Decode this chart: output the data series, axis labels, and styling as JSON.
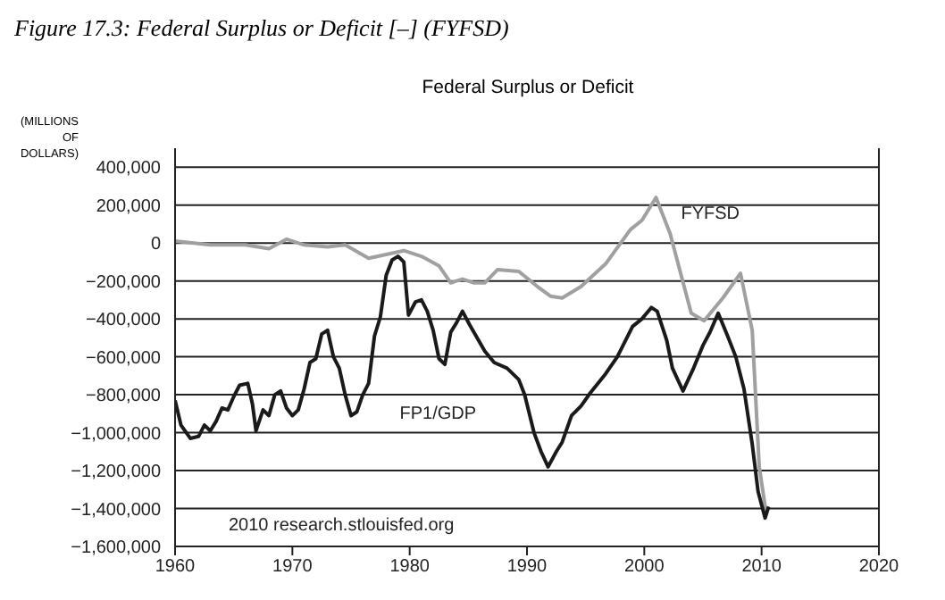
{
  "chart_data": {
    "type": "line",
    "title": "Figure 17.3: Federal Surplus or Deficit [–] (FYFSD)",
    "subtitle": "Federal Surplus or Deficit",
    "ylabel": "(MILLIONS OF DOLLARS)",
    "annotations": [
      "2010 research.stlouisfed.org"
    ],
    "xlim": [
      1960,
      2020
    ],
    "xticks": [
      1960,
      1970,
      1980,
      1990,
      2000,
      2010,
      2020
    ],
    "ylim": [
      -1600000,
      500000
    ],
    "yticks": [
      {
        "value": -1600000,
        "label": "−1,600,000"
      },
      {
        "value": -1400000,
        "label": "−1,400,000"
      },
      {
        "value": -1200000,
        "label": "−1,200,000"
      },
      {
        "value": -1000000,
        "label": "−1,000,000"
      },
      {
        "value": -800000,
        "label": "−800,000"
      },
      {
        "value": -600000,
        "label": "−600,000"
      },
      {
        "value": -400000,
        "label": "−400,000"
      },
      {
        "value": -200000,
        "label": "−200,000"
      },
      0,
      {
        "value": 200000,
        "label": "200,000"
      },
      {
        "value": 400000,
        "label": "400,000"
      }
    ],
    "grid": "y",
    "series": [
      {
        "name": "FYFSD",
        "color": "#a0a0a0",
        "x": [
          1960,
          1963,
          1966,
          1968,
          1969.5,
          1971,
          1973,
          1974.5,
          1976.5,
          1978,
          1979.5,
          1981,
          1982.5,
          1983.5,
          1984.5,
          1985.5,
          1986.4,
          1987.5,
          1989.3,
          1990.9,
          1992,
          1993,
          1994.6,
          1996.7,
          1998.8,
          1999.8,
          2001,
          2002.2,
          2004,
          2005.1,
          2006.7,
          2008.2,
          2009.2,
          2009.8,
          2010.4
        ],
        "values": [
          10000,
          -10000,
          -10000,
          -30000,
          20000,
          -10000,
          -20000,
          -10000,
          -80000,
          -60000,
          -40000,
          -70000,
          -120000,
          -210000,
          -190000,
          -210000,
          -210000,
          -140000,
          -150000,
          -230000,
          -280000,
          -290000,
          -230000,
          -110000,
          70000,
          120000,
          240000,
          50000,
          -370000,
          -410000,
          -290000,
          -160000,
          -460000,
          -1180000,
          -1430000
        ]
      },
      {
        "name": "FP1/GDP",
        "color": "#1a1a1a",
        "x": [
          1960,
          1960.5,
          1961.3,
          1962,
          1962.5,
          1963,
          1963.5,
          1964,
          1964.5,
          1965,
          1965.5,
          1966.2,
          1966.6,
          1966.9,
          1967.5,
          1968,
          1968.5,
          1969,
          1969.5,
          1970,
          1970.5,
          1971,
          1971.5,
          1972,
          1972.5,
          1973,
          1973.5,
          1974,
          1974.5,
          1975,
          1975.5,
          1976,
          1976.5,
          1977,
          1977.5,
          1978,
          1978.5,
          1979,
          1979.5,
          1979.9,
          1980.5,
          1981,
          1981.5,
          1982,
          1982.5,
          1983,
          1983.5,
          1984,
          1984.5,
          1985.1,
          1986.4,
          1987.2,
          1988.3,
          1989.3,
          1989.8,
          1990.6,
          1991.2,
          1991.8,
          1992.5,
          1993,
          1993.8,
          1994.6,
          1995.4,
          1996.7,
          1997.7,
          1999,
          1999.8,
          2000.6,
          2001.1,
          2001.9,
          2002.4,
          2003.3,
          2004.2,
          2005,
          2005.6,
          2006.3,
          2007.1,
          2007.8,
          2008.5,
          2009.2,
          2009.7,
          2010.3,
          2010.6
        ],
        "values": [
          -830000,
          -960000,
          -1030000,
          -1020000,
          -960000,
          -990000,
          -940000,
          -870000,
          -880000,
          -810000,
          -750000,
          -740000,
          -850000,
          -990000,
          -880000,
          -910000,
          -800000,
          -780000,
          -870000,
          -910000,
          -880000,
          -770000,
          -630000,
          -610000,
          -480000,
          -460000,
          -600000,
          -660000,
          -800000,
          -910000,
          -890000,
          -800000,
          -740000,
          -490000,
          -390000,
          -170000,
          -90000,
          -70000,
          -100000,
          -380000,
          -310000,
          -300000,
          -360000,
          -460000,
          -610000,
          -640000,
          -470000,
          -420000,
          -360000,
          -430000,
          -570000,
          -630000,
          -660000,
          -720000,
          -800000,
          -1000000,
          -1100000,
          -1180000,
          -1100000,
          -1050000,
          -910000,
          -860000,
          -790000,
          -690000,
          -600000,
          -440000,
          -400000,
          -340000,
          -360000,
          -510000,
          -660000,
          -780000,
          -660000,
          -540000,
          -470000,
          -370000,
          -490000,
          -600000,
          -770000,
          -1060000,
          -1310000,
          -1450000,
          -1390000
        ]
      }
    ]
  }
}
